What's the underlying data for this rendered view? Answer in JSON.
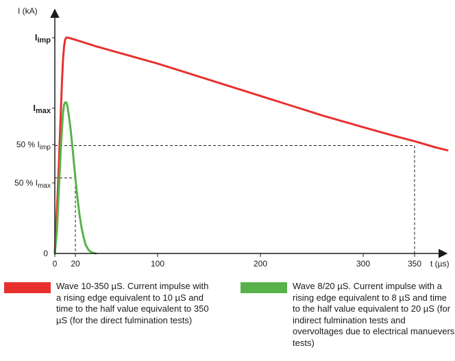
{
  "chart_data": {
    "type": "line",
    "ylabel": "I (kA)",
    "xlabel": "t (µs)",
    "x_ticks": [
      0,
      20,
      100,
      200,
      300,
      350
    ],
    "y_tick_zero": "0",
    "y_labels": {
      "imp_main": "I",
      "imp_sub": "imp",
      "max_main": "I",
      "max_sub": "max",
      "half_imp_main": "50 % I",
      "half_imp_sub": "imp",
      "half_max_main": "50 % I",
      "half_max_sub": "max"
    },
    "y_levels": {
      "imp": 1.0,
      "max": 0.7,
      "half_imp": 0.5,
      "half_max": 0.35
    },
    "xlim": [
      0,
      390
    ],
    "series": [
      {
        "color": "#e8302e",
        "points": [
          [
            0,
            0
          ],
          [
            3,
            0.3
          ],
          [
            5,
            0.55
          ],
          [
            7,
            0.8
          ],
          [
            8,
            0.9
          ],
          [
            9,
            0.96
          ],
          [
            10,
            0.99
          ],
          [
            11,
            1.0
          ],
          [
            13,
            1.0
          ],
          [
            20,
            0.99
          ],
          [
            40,
            0.96
          ],
          [
            70,
            0.92
          ],
          [
            100,
            0.88
          ],
          [
            140,
            0.82
          ],
          [
            180,
            0.76
          ],
          [
            220,
            0.7
          ],
          [
            260,
            0.64
          ],
          [
            300,
            0.585
          ],
          [
            330,
            0.545
          ],
          [
            350,
            0.52
          ],
          [
            370,
            0.492
          ],
          [
            382,
            0.478
          ]
        ]
      },
      {
        "color": "#57b24a",
        "points": [
          [
            0,
            0
          ],
          [
            2,
            0.1
          ],
          [
            4,
            0.3
          ],
          [
            6,
            0.5
          ],
          [
            7,
            0.58
          ],
          [
            8,
            0.65
          ],
          [
            9,
            0.69
          ],
          [
            10,
            0.7
          ],
          [
            11,
            0.7
          ],
          [
            12,
            0.69
          ],
          [
            13,
            0.66
          ],
          [
            15,
            0.59
          ],
          [
            17,
            0.5
          ],
          [
            18,
            0.45
          ],
          [
            20,
            0.35
          ],
          [
            22,
            0.26
          ],
          [
            24,
            0.18
          ],
          [
            26,
            0.12
          ],
          [
            28,
            0.075
          ],
          [
            30,
            0.04
          ],
          [
            33,
            0.015
          ],
          [
            36,
            0.004
          ],
          [
            40,
            0.0
          ]
        ]
      }
    ],
    "guides": [
      {
        "x": 20,
        "level": "half_max"
      },
      {
        "x": 350,
        "level": "half_imp"
      }
    ]
  },
  "legend": [
    {
      "color": "#e8302e",
      "text": "Wave 10-350 µS. Current impulse with a rising edge equivalent to 10 µS and time to the half value equivalent to 350 µS (for the direct fulmination tests)"
    },
    {
      "color": "#57b24a",
      "text": "Wave 8/20 µS. Current impulse with a rising edge equivalent to 8 µS and time to the half value equivalent to 20 µS (for indirect fulmination tests and overvoltages due to electrical manuevers tests)"
    }
  ]
}
